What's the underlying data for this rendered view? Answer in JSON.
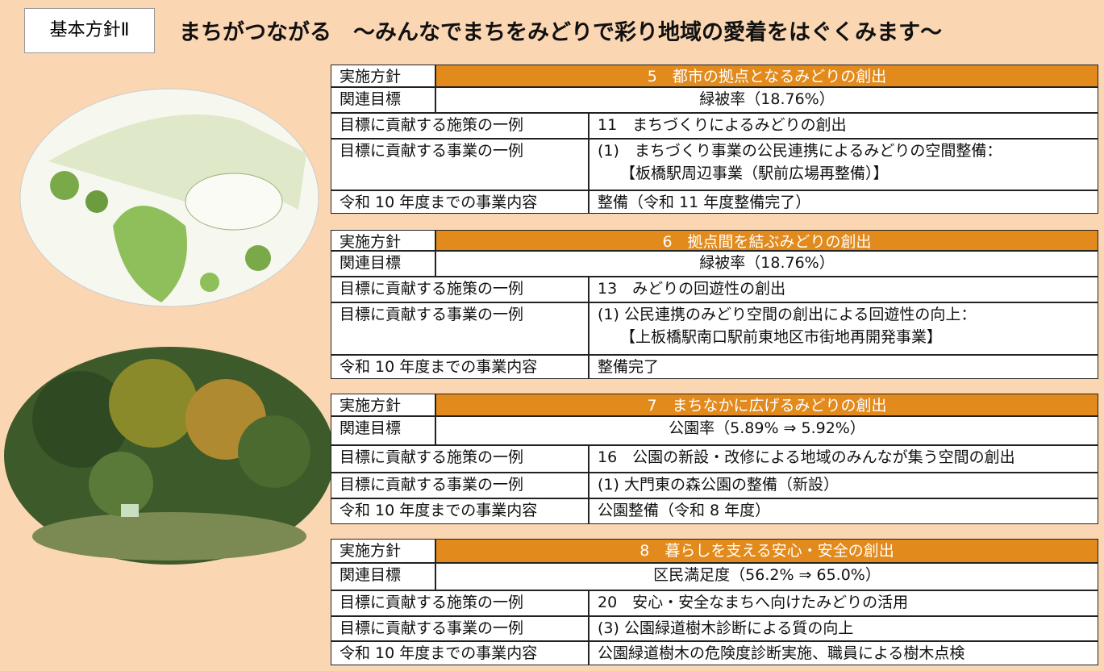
{
  "header": {
    "label": "基本方針Ⅱ",
    "title": "まちがつながる　～みんなでまちをみどりで彩り地域の愛着をはぐくみます～"
  },
  "sections": [
    {
      "policy_label": "実施方針",
      "policy": "5　都市の拠点となるみどりの創出",
      "goal_label": "関連目標",
      "goal": "緑被率（18.76%）",
      "measure_label": "目標に貢献する施策の一例",
      "measure": "11　まちづくりによるみどりの創出",
      "project_label": "目標に貢献する事業の一例",
      "project": [
        "(1)　まちづくり事業の公民連携によるみどりの空間整備：",
        "【板橋駅周辺事業（駅前広場再整備）】"
      ],
      "content_label": "令和 10 年度までの事業内容",
      "content": "整備（令和 11 年度整備完了）"
    },
    {
      "policy_label": "実施方針",
      "policy": "6　拠点間を結ぶみどりの創出",
      "goal_label": "関連目標",
      "goal": "緑被率（18.76%）",
      "measure_label": "目標に貢献する施策の一例",
      "measure": "13　みどりの回遊性の創出",
      "project_label": "目標に貢献する事業の一例",
      "project": [
        "(1) 公民連携のみどり空間の創出による回遊性の向上：",
        "【上板橋駅南口駅前東地区市街地再開発事業】"
      ],
      "content_label": "令和 10 年度までの事業内容",
      "content": "整備完了"
    },
    {
      "policy_label": "実施方針",
      "policy": "7　まちなかに広げるみどりの創出",
      "goal_label": "関連目標",
      "goal": "公園率（5.89% ⇒ 5.92%）",
      "measure_label": "目標に貢献する施策の一例",
      "measure": "16　公園の新設・改修による地域のみんなが集う空間の創出",
      "project_label": "目標に貢献する事業の一例",
      "project": [
        "(1) 大門東の森公園の整備（新設）"
      ],
      "content_label": "令和 10 年度までの事業内容",
      "content": "公園整備（令和 8 年度）"
    },
    {
      "policy_label": "実施方針",
      "policy": "8　暮らしを支える安心・安全の創出",
      "goal_label": "関連目標",
      "goal": "区民満足度（56.2% ⇒ 65.0%）",
      "measure_label": "目標に貢献する施策の一例",
      "measure": "20　安心・安全なまちへ向けたみどりの活用",
      "project_label": "目標に貢献する事業の一例",
      "project": [
        "(3) 公園緑道樹木診断による質の向上"
      ],
      "content_label": "令和 10 年度までの事業内容",
      "content": "公園緑道樹木の危険度診断実施、職員による樹木点検"
    }
  ]
}
